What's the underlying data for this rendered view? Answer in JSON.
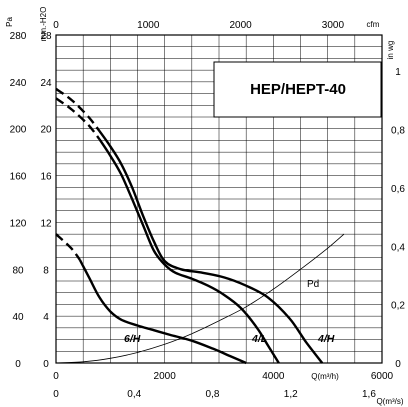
{
  "chart_data": {
    "type": "line",
    "title": "HEP/HEPT-40",
    "axes": {
      "left_pa": {
        "unit": "Pa",
        "range": [
          0,
          280
        ],
        "ticks": [
          0,
          40,
          80,
          120,
          160,
          200,
          240,
          280
        ]
      },
      "left_mmh2o": {
        "unit": "mm.-H2O",
        "range": [
          0,
          28
        ],
        "ticks": [
          0,
          4,
          8,
          12,
          16,
          20,
          24,
          28
        ]
      },
      "right_inwg": {
        "unit": "in wg",
        "range": [
          0,
          1.125
        ],
        "ticks": [
          "0",
          "0,2",
          "0,4",
          "0,6",
          "0,8",
          "1"
        ]
      },
      "top_cfm": {
        "unit": "cfm",
        "range": [
          0,
          3530
        ],
        "ticks": [
          0,
          1000,
          2000,
          3000
        ]
      },
      "bottom_m3h": {
        "unit": "Q(m³/h)",
        "range": [
          0,
          6000
        ],
        "ticks": [
          0,
          2000,
          4000,
          6000
        ]
      },
      "bottom_m3s": {
        "unit": "Q(m³/s)",
        "range": [
          0,
          1.667
        ],
        "ticks": [
          "0",
          "0,4",
          "0,8",
          "1,2",
          "1,6"
        ]
      }
    },
    "grid": true,
    "series": [
      {
        "name": "6/H",
        "dashed_portion": [
          [
            0,
            110
          ],
          [
            280,
            98
          ],
          [
            440,
            88
          ]
        ],
        "values": [
          [
            440,
            88
          ],
          [
            620,
            72
          ],
          [
            800,
            56
          ],
          [
            1000,
            44
          ],
          [
            1200,
            37
          ],
          [
            1500,
            32
          ],
          [
            1800,
            28
          ],
          [
            2100,
            24
          ],
          [
            2500,
            19
          ],
          [
            2900,
            12
          ],
          [
            3200,
            6
          ],
          [
            3500,
            0
          ]
        ]
      },
      {
        "name": "4/L",
        "dashed_portion": [
          [
            0,
            226
          ],
          [
            300,
            216
          ],
          [
            600,
            203
          ],
          [
            800,
            191
          ]
        ],
        "values": [
          [
            800,
            191
          ],
          [
            1000,
            177
          ],
          [
            1200,
            161
          ],
          [
            1400,
            140
          ],
          [
            1600,
            118
          ],
          [
            1800,
            96
          ],
          [
            2000,
            84
          ],
          [
            2200,
            77
          ],
          [
            2500,
            72
          ],
          [
            2800,
            66
          ],
          [
            3100,
            58
          ],
          [
            3400,
            47
          ],
          [
            3700,
            30
          ],
          [
            3900,
            15
          ],
          [
            4100,
            0
          ]
        ]
      },
      {
        "name": "4/H",
        "dashed_portion": [
          [
            0,
            234
          ],
          [
            300,
            224
          ],
          [
            600,
            210
          ],
          [
            800,
            198
          ]
        ],
        "values": [
          [
            800,
            198
          ],
          [
            1000,
            185
          ],
          [
            1200,
            170
          ],
          [
            1400,
            150
          ],
          [
            1600,
            126
          ],
          [
            1800,
            104
          ],
          [
            2000,
            87
          ],
          [
            2300,
            80
          ],
          [
            2700,
            77
          ],
          [
            3100,
            73
          ],
          [
            3500,
            66
          ],
          [
            3900,
            56
          ],
          [
            4300,
            38
          ],
          [
            4600,
            18
          ],
          [
            4900,
            0
          ]
        ]
      },
      {
        "name": "Pd",
        "values": [
          [
            0,
            0
          ],
          [
            500,
            1
          ],
          [
            1000,
            4
          ],
          [
            1500,
            9
          ],
          [
            2000,
            16
          ],
          [
            2500,
            25
          ],
          [
            3000,
            36
          ],
          [
            3500,
            48
          ],
          [
            4000,
            63
          ],
          [
            4500,
            80
          ],
          [
            5000,
            98
          ],
          [
            5300,
            110
          ]
        ]
      }
    ]
  }
}
